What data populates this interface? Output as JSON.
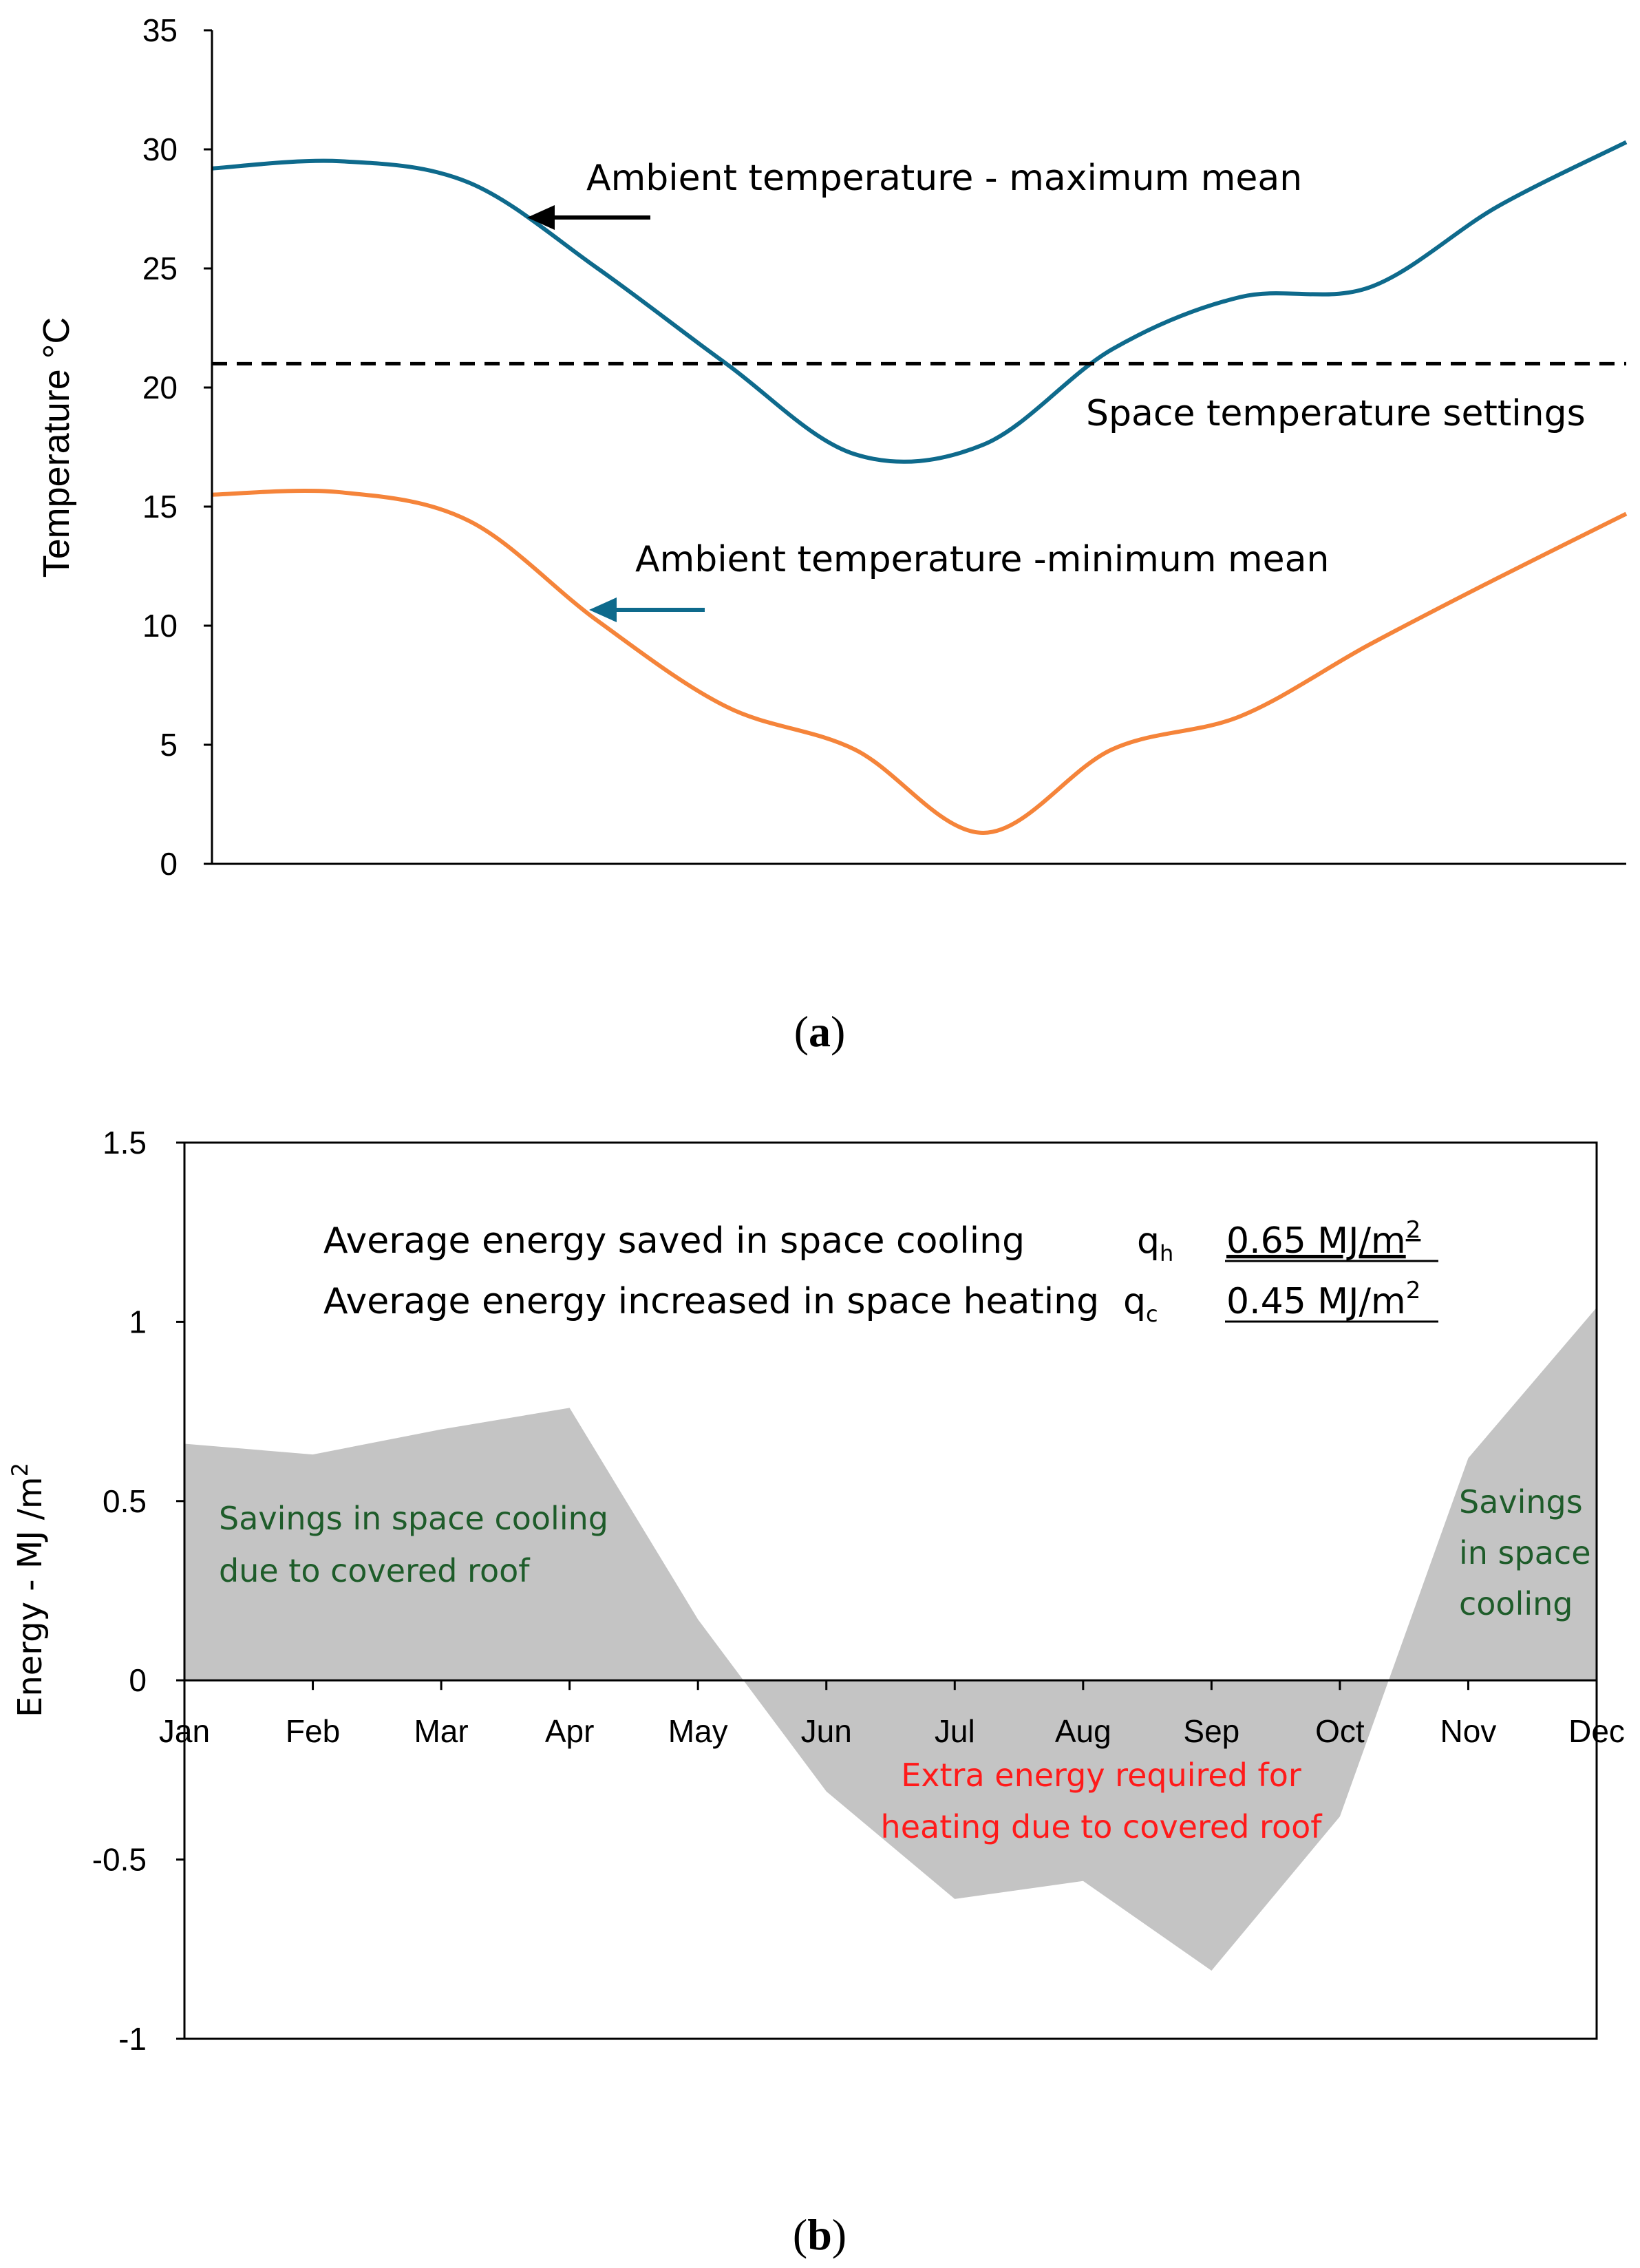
{
  "colors": {
    "max_line": "#0e6a8c",
    "min_line": "#f5843a",
    "setpoint_line": "#000000",
    "area_fill": "#c4c4c4",
    "green_text": "#1e5c2a",
    "red_text": "#ff1a1a"
  },
  "chart_data": [
    {
      "type": "line",
      "panel_label": "a",
      "title": "",
      "ylabel": "Temperature °C",
      "xlabel": "",
      "ylim": [
        0,
        35
      ],
      "yticks": [
        "0",
        "5",
        "10",
        "15",
        "20",
        "25",
        "30",
        "35"
      ],
      "grid": false,
      "x": [
        1,
        2,
        3,
        4,
        5,
        6,
        7,
        8,
        9,
        10,
        11,
        12
      ],
      "series": [
        {
          "name": "Ambient temperature - maximum mean",
          "values": [
            29.2,
            29.5,
            28.6,
            25.0,
            21.0,
            17.2,
            17.6,
            21.6,
            23.8,
            24.2,
            27.6,
            30.3
          ]
        },
        {
          "name": "Ambient temperature -minimum mean",
          "values": [
            15.5,
            15.6,
            14.4,
            10.2,
            6.6,
            4.8,
            1.3,
            4.8,
            6.2,
            9.2,
            12.0,
            14.7
          ]
        },
        {
          "name": "Space temperature settings",
          "values": [
            21,
            21,
            21,
            21,
            21,
            21,
            21,
            21,
            21,
            21,
            21,
            21
          ]
        }
      ],
      "annotations": {
        "max_label": "Ambient temperature - maximum mean",
        "min_label": "Ambient temperature -minimum mean",
        "setpoint_label": "Space temperature settings"
      }
    },
    {
      "type": "area",
      "panel_label": "b",
      "title": "",
      "ylabel": "Energy - MJ /m",
      "ylabel_superscript": "2",
      "xlabel": "",
      "ylim": [
        -1,
        1.5
      ],
      "yticks": [
        "-1",
        "-0.5",
        "0",
        "0.5",
        "1",
        "1.5"
      ],
      "grid": false,
      "categories": [
        "Jan",
        "Feb",
        "Mar",
        "Apr",
        "May",
        "Jun",
        "Jul",
        "Aug",
        "Sep",
        "Oct",
        "Nov",
        "Dec"
      ],
      "values": [
        0.66,
        0.63,
        0.7,
        0.76,
        0.17,
        -0.31,
        -0.61,
        -0.56,
        -0.81,
        -0.38,
        0.62,
        1.04
      ],
      "annotations": {
        "cooling_line": "Average energy saved in space cooling",
        "cooling_symbol": "q",
        "cooling_sub": "h",
        "cooling_value": "0.65 MJ/m",
        "cooling_value_sup": "2",
        "heating_line": "Average energy increased in space heating",
        "heating_symbol": "q",
        "heating_sub": "c",
        "heating_value": "0.45 MJ/m",
        "heating_value_sup": "2",
        "savings_left_1": "Savings in space cooling",
        "savings_left_2": "due to covered roof",
        "savings_right_1": "Savings",
        "savings_right_2": "in space",
        "savings_right_3": "cooling",
        "extra_1": "Extra energy required for",
        "extra_2": "heating due to covered roof"
      }
    }
  ]
}
